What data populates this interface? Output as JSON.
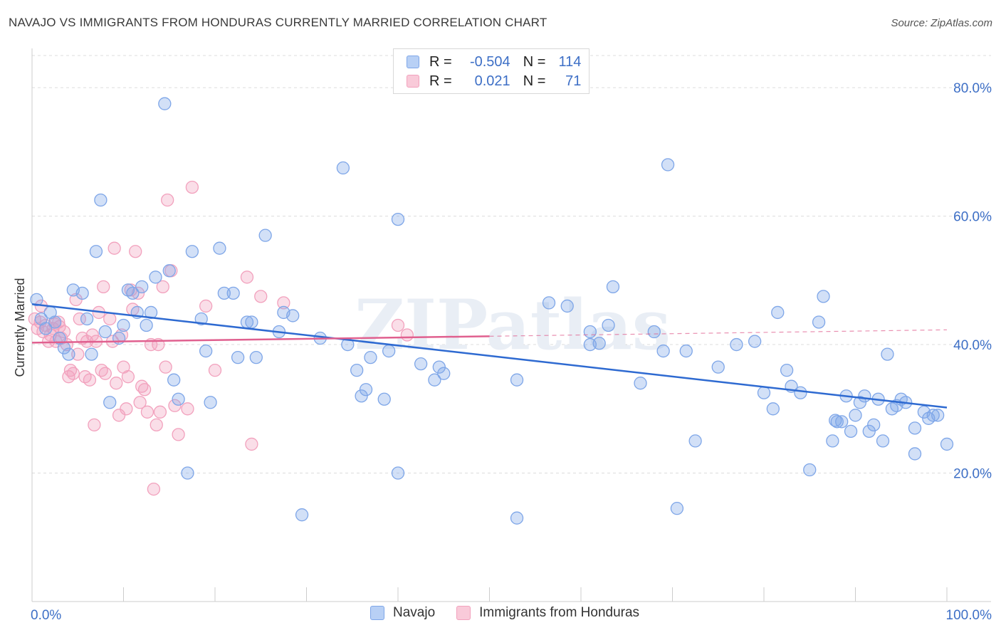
{
  "title": "NAVAJO VS IMMIGRANTS FROM HONDURAS CURRENTLY MARRIED CORRELATION CHART",
  "source": "Source: ZipAtlas.com",
  "watermark": "ZIPatlas",
  "legend": {
    "rows": [
      {
        "r_label": "R =",
        "r_value": "-0.504",
        "n_label": "N =",
        "n_value": "114"
      },
      {
        "r_label": "R =",
        "r_value": "0.021",
        "n_label": "N =",
        "n_value": "71"
      }
    ]
  },
  "chart_data": {
    "type": "scatter",
    "xlabel": "",
    "ylabel": "Currently Married",
    "xlim": [
      0,
      100
    ],
    "ylim": [
      0,
      85
    ],
    "x_tick_labels": [
      "0.0%",
      "100.0%"
    ],
    "y_ticks": [
      20,
      40,
      60,
      80
    ],
    "y_tick_labels": [
      "20.0%",
      "40.0%",
      "60.0%",
      "80.0%"
    ],
    "grid": true,
    "legend_position": "bottom",
    "series": [
      {
        "name": "Navajo",
        "color": "#7ea6e8",
        "line_color": "#2e6ad1",
        "trend": {
          "x": [
            0,
            100
          ],
          "y": [
            46.3,
            30.2
          ]
        },
        "points": [
          [
            0.5,
            47.0
          ],
          [
            1.0,
            44.0
          ],
          [
            1.5,
            42.5
          ],
          [
            2.0,
            45.0
          ],
          [
            2.5,
            43.5
          ],
          [
            3.0,
            41.0
          ],
          [
            3.5,
            39.5
          ],
          [
            4.0,
            38.5
          ],
          [
            4.5,
            48.5
          ],
          [
            5.5,
            48.0
          ],
          [
            6.0,
            44.0
          ],
          [
            6.5,
            38.5
          ],
          [
            7.0,
            54.5
          ],
          [
            7.5,
            62.5
          ],
          [
            8.0,
            42.0
          ],
          [
            8.5,
            31.0
          ],
          [
            9.5,
            41.0
          ],
          [
            10.0,
            43.0
          ],
          [
            10.5,
            48.5
          ],
          [
            11.0,
            48.0
          ],
          [
            11.5,
            45.0
          ],
          [
            12.0,
            49.0
          ],
          [
            12.5,
            43.0
          ],
          [
            13.0,
            45.0
          ],
          [
            13.5,
            50.5
          ],
          [
            14.5,
            77.5
          ],
          [
            15.0,
            51.5
          ],
          [
            15.5,
            34.5
          ],
          [
            16.0,
            31.5
          ],
          [
            17.0,
            20.0
          ],
          [
            17.5,
            54.5
          ],
          [
            18.5,
            44.0
          ],
          [
            19.0,
            39.0
          ],
          [
            19.5,
            31.0
          ],
          [
            20.5,
            55.0
          ],
          [
            21.0,
            48.0
          ],
          [
            22.0,
            48.0
          ],
          [
            22.5,
            38.0
          ],
          [
            23.5,
            43.5
          ],
          [
            24.0,
            43.5
          ],
          [
            24.5,
            38.0
          ],
          [
            25.5,
            57.0
          ],
          [
            27.0,
            42.0
          ],
          [
            27.5,
            45.0
          ],
          [
            28.5,
            44.5
          ],
          [
            29.5,
            13.5
          ],
          [
            31.5,
            41.0
          ],
          [
            34.0,
            67.5
          ],
          [
            34.5,
            40.0
          ],
          [
            35.5,
            36.0
          ],
          [
            36.0,
            32.0
          ],
          [
            36.5,
            33.0
          ],
          [
            37.0,
            38.0
          ],
          [
            38.5,
            31.5
          ],
          [
            39.0,
            39.0
          ],
          [
            40.0,
            59.5
          ],
          [
            40.0,
            20.0
          ],
          [
            42.5,
            37.0
          ],
          [
            44.0,
            34.5
          ],
          [
            44.5,
            36.5
          ],
          [
            45.0,
            35.5
          ],
          [
            53.0,
            34.5
          ],
          [
            53.0,
            13.0
          ],
          [
            56.5,
            46.5
          ],
          [
            58.5,
            46.0
          ],
          [
            61.0,
            42.0
          ],
          [
            61.0,
            40.0
          ],
          [
            63.0,
            43.0
          ],
          [
            63.5,
            49.0
          ],
          [
            66.5,
            34.0
          ],
          [
            68.0,
            42.0
          ],
          [
            69.0,
            39.0
          ],
          [
            69.5,
            68.0
          ],
          [
            70.5,
            14.5
          ],
          [
            71.5,
            39.0
          ],
          [
            72.5,
            25.0
          ],
          [
            75.0,
            36.5
          ],
          [
            77.0,
            40.0
          ],
          [
            79.0,
            40.5
          ],
          [
            80.0,
            32.5
          ],
          [
            81.0,
            30.0
          ],
          [
            81.5,
            45.0
          ],
          [
            82.5,
            36.0
          ],
          [
            83.0,
            33.5
          ],
          [
            84.0,
            32.5
          ],
          [
            85.0,
            20.5
          ],
          [
            86.0,
            43.5
          ],
          [
            86.5,
            47.5
          ],
          [
            87.5,
            25.0
          ],
          [
            88.0,
            28.0
          ],
          [
            88.5,
            28.0
          ],
          [
            89.0,
            32.0
          ],
          [
            89.5,
            26.5
          ],
          [
            90.0,
            29.0
          ],
          [
            90.5,
            31.0
          ],
          [
            91.0,
            32.0
          ],
          [
            91.5,
            26.5
          ],
          [
            92.0,
            27.5
          ],
          [
            92.5,
            31.5
          ],
          [
            93.0,
            25.0
          ],
          [
            93.5,
            38.5
          ],
          [
            94.0,
            30.0
          ],
          [
            94.5,
            30.5
          ],
          [
            95.0,
            31.5
          ],
          [
            95.5,
            31.0
          ],
          [
            96.5,
            27.0
          ],
          [
            96.5,
            23.0
          ],
          [
            97.5,
            29.5
          ],
          [
            98.0,
            28.5
          ],
          [
            98.5,
            29.0
          ],
          [
            99.0,
            29.0
          ],
          [
            100.0,
            24.5
          ],
          [
            87.8,
            28.2
          ],
          [
            62.0,
            40.2
          ]
        ]
      },
      {
        "name": "Immigrants from Honduras",
        "color": "#f2a1bd",
        "line_color": "#e0608f",
        "trend": {
          "x": [
            0,
            50
          ],
          "y": [
            40.3,
            41.3
          ]
        },
        "trend_extension": {
          "x": [
            50,
            100
          ],
          "y": [
            41.3,
            42.3
          ]
        },
        "points": [
          [
            0.3,
            44.0
          ],
          [
            0.6,
            42.5
          ],
          [
            0.9,
            43.5
          ],
          [
            1.2,
            42.0
          ],
          [
            1.5,
            43.0
          ],
          [
            1.8,
            40.5
          ],
          [
            2.0,
            41.5
          ],
          [
            2.3,
            42.5
          ],
          [
            2.6,
            40.5
          ],
          [
            2.9,
            43.5
          ],
          [
            3.2,
            41.0
          ],
          [
            3.5,
            42.0
          ],
          [
            3.8,
            40.0
          ],
          [
            4.0,
            35.0
          ],
          [
            4.2,
            36.0
          ],
          [
            4.5,
            35.5
          ],
          [
            4.8,
            47.0
          ],
          [
            5.0,
            38.5
          ],
          [
            5.2,
            44.0
          ],
          [
            5.5,
            41.0
          ],
          [
            5.8,
            35.0
          ],
          [
            6.0,
            40.5
          ],
          [
            6.3,
            34.5
          ],
          [
            6.6,
            41.5
          ],
          [
            6.8,
            27.5
          ],
          [
            7.0,
            40.5
          ],
          [
            7.3,
            45.0
          ],
          [
            7.6,
            36.0
          ],
          [
            7.8,
            49.0
          ],
          [
            8.0,
            35.5
          ],
          [
            8.5,
            44.0
          ],
          [
            8.8,
            40.5
          ],
          [
            9.0,
            55.0
          ],
          [
            9.2,
            34.0
          ],
          [
            9.5,
            29.0
          ],
          [
            9.8,
            41.5
          ],
          [
            10.0,
            36.5
          ],
          [
            10.3,
            30.0
          ],
          [
            10.5,
            35.0
          ],
          [
            10.8,
            48.5
          ],
          [
            11.0,
            45.5
          ],
          [
            11.3,
            54.5
          ],
          [
            11.6,
            48.0
          ],
          [
            11.8,
            31.0
          ],
          [
            12.0,
            33.5
          ],
          [
            12.3,
            33.0
          ],
          [
            12.6,
            29.5
          ],
          [
            13.0,
            40.0
          ],
          [
            13.3,
            17.5
          ],
          [
            13.6,
            27.5
          ],
          [
            13.8,
            40.0
          ],
          [
            14.0,
            29.5
          ],
          [
            14.3,
            49.0
          ],
          [
            14.6,
            36.5
          ],
          [
            14.8,
            62.5
          ],
          [
            15.2,
            51.5
          ],
          [
            15.6,
            30.5
          ],
          [
            16.0,
            26.0
          ],
          [
            17.0,
            30.0
          ],
          [
            17.5,
            64.5
          ],
          [
            19.0,
            46.0
          ],
          [
            20.0,
            36.0
          ],
          [
            23.5,
            50.5
          ],
          [
            24.0,
            24.5
          ],
          [
            25.0,
            47.5
          ],
          [
            27.5,
            46.5
          ],
          [
            40.0,
            43.0
          ],
          [
            41.0,
            41.5
          ],
          [
            3.0,
            42.8
          ],
          [
            1.0,
            46.0
          ],
          [
            2.5,
            43.2
          ]
        ]
      }
    ]
  },
  "bottom_legend": [
    {
      "label": "Navajo",
      "color": "#b8d0f5",
      "border": "#7ea6e8"
    },
    {
      "label": "Immigrants from Honduras",
      "color": "#f9cad9",
      "border": "#f2a1bd"
    }
  ]
}
